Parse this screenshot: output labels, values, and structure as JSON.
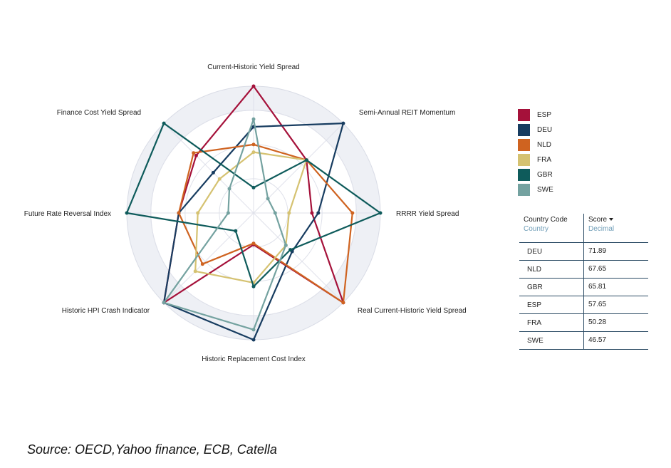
{
  "chart_data": {
    "type": "radar",
    "axes": [
      "Current-Historic Yield Spread",
      "Semi-Annual REIT Momentum",
      "RRRR Yield Spread",
      "Real Current-Historic Yield Spread",
      "Historic Replacement Cost Index",
      "Historic HPI Crash Indicator",
      "Future Rate Reversal Index",
      "Finance Cost Yield Spread"
    ],
    "range": [
      0,
      100
    ],
    "grid_rings": 3,
    "series": [
      {
        "name": "ESP",
        "color": "#a5113a",
        "values": [
          100,
          59,
          46,
          100,
          25,
          100,
          59,
          64
        ]
      },
      {
        "name": "DEU",
        "color": "#173c60",
        "values": [
          68,
          100,
          51,
          43,
          100,
          100,
          59,
          45
        ]
      },
      {
        "name": "NLD",
        "color": "#cf6320",
        "values": [
          54,
          59,
          78,
          100,
          24,
          57,
          59,
          67
        ]
      },
      {
        "name": "FRA",
        "color": "#d5c271",
        "values": [
          48,
          59,
          28,
          36,
          55,
          65,
          44,
          38
        ]
      },
      {
        "name": "GBR",
        "color": "#0e5b5b",
        "values": [
          20,
          59,
          100,
          41,
          58,
          20,
          100,
          100
        ]
      },
      {
        "name": "SWE",
        "color": "#74a2a0",
        "values": [
          74,
          16,
          17,
          36,
          92,
          100,
          20,
          27
        ]
      }
    ]
  },
  "legend": [
    {
      "label": "ESP",
      "color": "#a5113a"
    },
    {
      "label": "DEU",
      "color": "#173c60"
    },
    {
      "label": "NLD",
      "color": "#cf6320"
    },
    {
      "label": "FRA",
      "color": "#d5c271"
    },
    {
      "label": "GBR",
      "color": "#0e5b5b"
    },
    {
      "label": "SWE",
      "color": "#74a2a0"
    }
  ],
  "table": {
    "col1_header": "Country Code",
    "col1_sub": "Country",
    "col2_header": "Score",
    "col2_sub": "Decimal",
    "rows": [
      {
        "country": "DEU",
        "score": "71.89"
      },
      {
        "country": "NLD",
        "score": "67.65"
      },
      {
        "country": "GBR",
        "score": "65.81"
      },
      {
        "country": "ESP",
        "score": "57.65"
      },
      {
        "country": "FRA",
        "score": "50.28"
      },
      {
        "country": "SWE",
        "score": "46.57"
      }
    ]
  },
  "source_text": "Source: OECD,Yahoo finance, ECB, Catella"
}
